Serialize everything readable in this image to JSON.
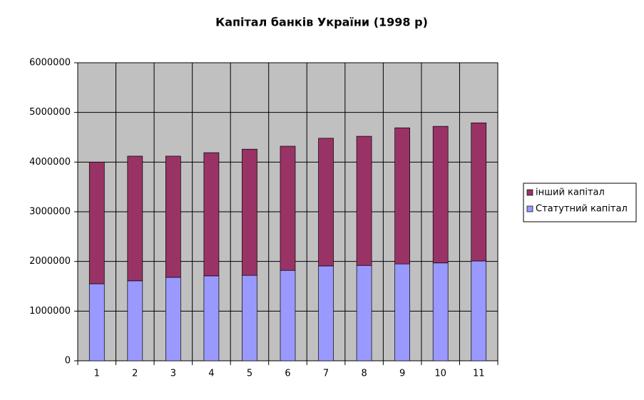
{
  "chart_data": {
    "type": "stacked-bar",
    "title": "Капітал банків України (1998 р)",
    "categories": [
      "1",
      "2",
      "3",
      "4",
      "5",
      "6",
      "7",
      "8",
      "9",
      "10",
      "11"
    ],
    "series": [
      {
        "name": "Статутний капітал",
        "color": "#9999ff",
        "values": [
          1550000,
          1610000,
          1680000,
          1710000,
          1720000,
          1820000,
          1910000,
          1920000,
          1950000,
          1970000,
          2010000
        ]
      },
      {
        "name": "інший капітал",
        "color": "#993366",
        "values": [
          2450000,
          2510000,
          2440000,
          2480000,
          2540000,
          2500000,
          2570000,
          2600000,
          2740000,
          2750000,
          2780000
        ]
      }
    ],
    "ylim": [
      0,
      6000000
    ],
    "yticks": [
      0,
      1000000,
      2000000,
      3000000,
      4000000,
      5000000,
      6000000
    ],
    "grid": true,
    "legend": "right"
  }
}
